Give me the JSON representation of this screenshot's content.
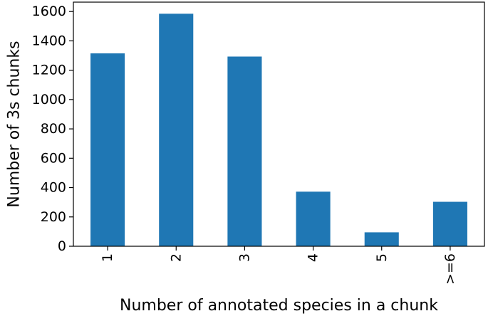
{
  "chart_data": {
    "type": "bar",
    "title": "",
    "xlabel": "Number of annotated species in a chunk",
    "ylabel": "Number of 3s chunks",
    "categories": [
      "1",
      "2",
      "3",
      "4",
      "5",
      ">=6"
    ],
    "values": [
      1315,
      1585,
      1293,
      372,
      95,
      303
    ],
    "ylim": [
      0,
      1664
    ],
    "yticks": [
      0,
      200,
      400,
      600,
      800,
      1000,
      1200,
      1400,
      1600
    ],
    "x_tick_rotation": "vertical",
    "bar_color": "#1f77b4",
    "grid": false,
    "legend": "none"
  }
}
